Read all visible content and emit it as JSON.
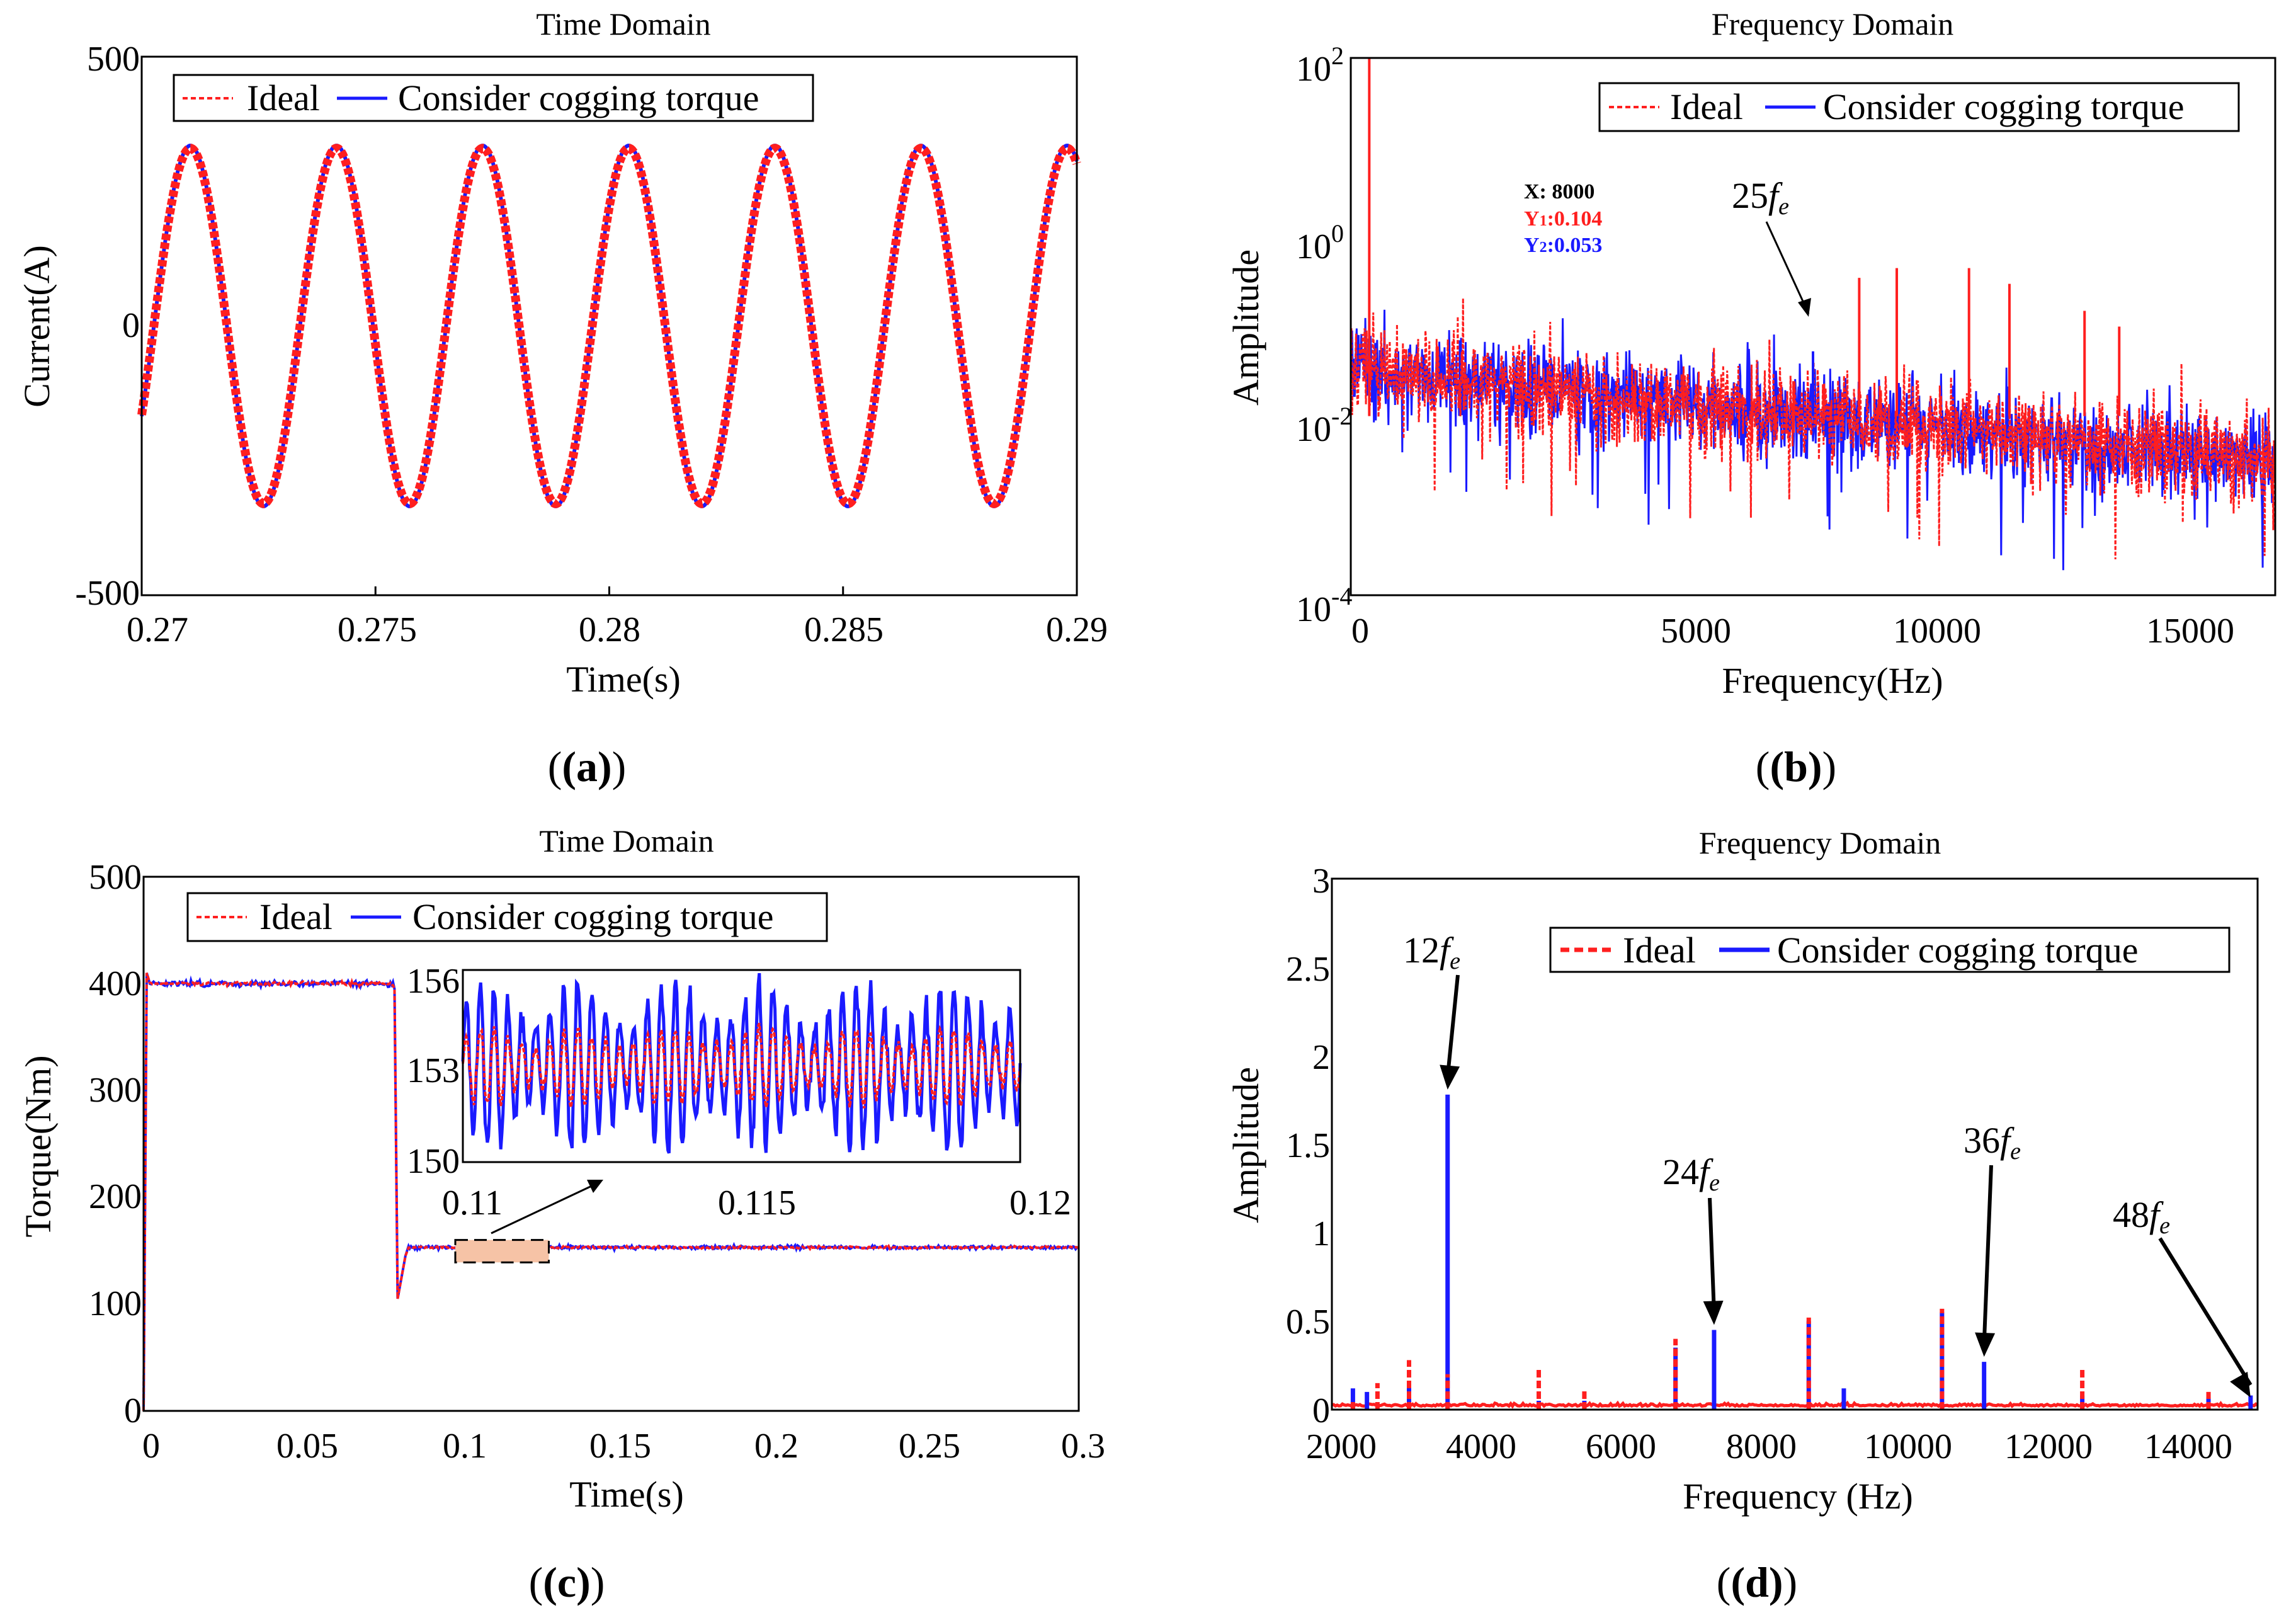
{
  "figure": {
    "panel_labels": [
      "(a)",
      "(b)",
      "(c)",
      "(d)"
    ],
    "colors": {
      "ideal": "#ff1f1f",
      "cogging": "#1a1aff",
      "inset_box_fill": "#f6c3a6"
    }
  },
  "chart_data": [
    {
      "id": "a",
      "type": "line",
      "title": "Time Domain",
      "xlabel": "Time(s)",
      "ylabel": "Current(A)",
      "xlim": [
        0.27,
        0.29
      ],
      "ylim": [
        -500,
        500
      ],
      "xticks": [
        "0.27",
        "0.275",
        "0.28",
        "0.285",
        "0.29"
      ],
      "yticks": [
        "-500",
        "0",
        "500"
      ],
      "legend": {
        "position": "top-left",
        "entries": [
          "Ideal",
          "Consider cogging torque"
        ]
      },
      "series": [
        {
          "name": "Ideal",
          "style": "dashed",
          "waveform": "sinusoid",
          "amplitude": 330,
          "frequency_hz": 320,
          "phase_at_start_deg": -30
        },
        {
          "name": "Consider cogging torque",
          "style": "solid",
          "waveform": "sinusoid",
          "amplitude": 335,
          "frequency_hz": 320,
          "phase_at_start_deg": -30
        }
      ]
    },
    {
      "id": "b",
      "type": "line",
      "title": "Frequency Domain",
      "xlabel": "Frequency(Hz)",
      "ylabel": "Amplitude",
      "yscale": "log",
      "xlim": [
        0,
        16000
      ],
      "ylim": [
        0.0001,
        100
      ],
      "xticks": [
        "0",
        "5000",
        "10000",
        "15000"
      ],
      "yticks": [
        {
          "base": "10",
          "exp": "-4"
        },
        {
          "base": "10",
          "exp": "-2"
        },
        {
          "base": "10",
          "exp": "0"
        },
        {
          "base": "10",
          "exp": "2"
        }
      ],
      "legend": {
        "position": "top-right",
        "entries": [
          "Ideal",
          "Consider cogging torque"
        ]
      },
      "peaks": [
        {
          "series": "Ideal",
          "x": 320,
          "y": 100
        },
        {
          "series": "Ideal",
          "x": 8800,
          "y": 0.35
        },
        {
          "series": "Ideal",
          "x": 9450,
          "y": 0.45
        },
        {
          "series": "Ideal",
          "x": 10700,
          "y": 0.45
        },
        {
          "series": "Ideal",
          "x": 11400,
          "y": 0.3
        },
        {
          "series": "Ideal",
          "x": 12700,
          "y": 0.15
        },
        {
          "series": "Ideal",
          "x": 13300,
          "y": 0.1
        },
        {
          "series": "Consider cogging torque",
          "x": 8000,
          "y": 0.053
        }
      ],
      "noise_floor_log10": [
        -1.5,
        -2.5
      ],
      "datatip": {
        "x_label": "X:",
        "x_value": "8000",
        "y1_label": "Y",
        "y1_sub": "1",
        "y1_value": "0.104",
        "y2_label": "Y",
        "y2_sub": "2",
        "y2_value": "0.053"
      },
      "annotations": [
        {
          "text": "25",
          "sub": "e",
          "italic": "f",
          "x": 8000,
          "y": 0.053
        }
      ]
    },
    {
      "id": "c",
      "type": "line",
      "title": "Time Domain",
      "xlabel": "Time(s)",
      "ylabel": "Torque(Nm)",
      "xlim": [
        0,
        0.3
      ],
      "ylim": [
        0,
        500
      ],
      "xticks": [
        "0",
        "0.05",
        "0.1",
        "0.15",
        "0.2",
        "0.25",
        "0.3"
      ],
      "yticks": [
        "0",
        "100",
        "200",
        "300",
        "400",
        "500"
      ],
      "legend": {
        "position": "top-left",
        "entries": [
          "Ideal",
          "Consider cogging torque"
        ]
      },
      "series": [
        {
          "name": "Ideal",
          "style": "dashed",
          "segments": [
            {
              "t": [
                0,
                0.001,
                0.08
              ],
              "level": 400
            },
            {
              "t": [
                0.08,
                0.082
              ],
              "dip": 105
            },
            {
              "t": [
                0.085,
                0.3
              ],
              "level": 153
            }
          ]
        },
        {
          "name": "Consider cogging torque",
          "style": "solid",
          "segments": [
            {
              "t": [
                0,
                0.001,
                0.08
              ],
              "level": 400
            },
            {
              "t": [
                0.08,
                0.082
              ],
              "dip": 105
            },
            {
              "t": [
                0.085,
                0.3
              ],
              "level": 153
            }
          ]
        }
      ],
      "inset": {
        "xlim": [
          0.11,
          0.12
        ],
        "ylim": [
          150,
          156
        ],
        "xticks": [
          "0.11",
          "0.115",
          "0.12"
        ],
        "yticks": [
          "150",
          "153",
          "156"
        ],
        "zoom_box_x": [
          0.1,
          0.13
        ],
        "zoom_box_y": [
          139,
          160
        ]
      }
    },
    {
      "id": "d",
      "type": "bar",
      "title": "Frequency Domain",
      "xlabel": "Frequency (Hz)",
      "ylabel": "Amplitude",
      "xlim": [
        2000,
        15200
      ],
      "ylim": [
        0,
        3
      ],
      "xticks": [
        "2000",
        "4000",
        "6000",
        "8000",
        "10000",
        "12000",
        "14000"
      ],
      "yticks": [
        "0",
        "0.5",
        "1",
        "1.5",
        "2",
        "2.5",
        "3"
      ],
      "legend": {
        "position": "top-right",
        "entries": [
          "Ideal",
          "Consider cogging torque"
        ]
      },
      "series": [
        {
          "name": "Consider cogging torque",
          "x": [
            2300,
            2500,
            3100,
            3650,
            4950,
            5600,
            6900,
            7450,
            8800,
            9300,
            10700,
            11300,
            12700,
            14500,
            15100
          ],
          "values": [
            0.12,
            0.1,
            0.15,
            1.78,
            0.05,
            0.05,
            0.35,
            0.45,
            0.5,
            0.12,
            0.55,
            0.27,
            0.08,
            0.07,
            0.08
          ]
        },
        {
          "name": "Ideal",
          "x": [
            2300,
            2650,
            3100,
            3650,
            4950,
            5600,
            6900,
            8800,
            10700,
            12700,
            14500
          ],
          "values": [
            0.05,
            0.15,
            0.28,
            0.2,
            0.23,
            0.12,
            0.4,
            0.52,
            0.57,
            0.24,
            0.1
          ]
        }
      ],
      "annotations": [
        {
          "text": "12",
          "italic": "f",
          "sub": "e",
          "x": 3650,
          "y": 1.78
        },
        {
          "text": "24",
          "italic": "f",
          "sub": "e",
          "x": 7450,
          "y": 0.45
        },
        {
          "text": "36",
          "italic": "f",
          "sub": "e",
          "x": 11300,
          "y": 0.27
        },
        {
          "text": "48",
          "italic": "f",
          "sub": "e",
          "x": 15100,
          "y": 0.04
        }
      ]
    }
  ]
}
